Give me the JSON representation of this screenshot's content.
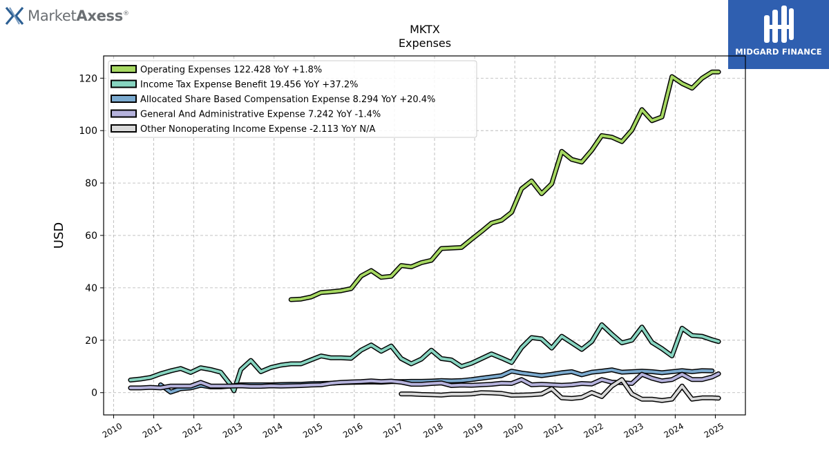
{
  "brand": {
    "logo_regular": "Market",
    "logo_bold": "Axess",
    "logo_mark": "®",
    "badge_text": "MIDGARD FINANCE"
  },
  "chart_data": {
    "type": "line",
    "title": "MKTX",
    "subtitle": "Expenses",
    "xlabel": "",
    "ylabel": "USD",
    "xlim": [
      2009.75,
      2025.75
    ],
    "ylim": [
      -8.5,
      128.5
    ],
    "x_ticks": [
      2010,
      2011,
      2012,
      2013,
      2014,
      2015,
      2016,
      2017,
      2018,
      2019,
      2020,
      2021,
      2022,
      2023,
      2024,
      2025
    ],
    "y_ticks": [
      0,
      20,
      40,
      60,
      80,
      100,
      120
    ],
    "grid": true,
    "legend_position": "top-left",
    "series": [
      {
        "name": "Operating Expenses",
        "legend": "Operating Expenses  122.428 YoY +1.8%",
        "color": "#a6d862",
        "x": [
          2014.42,
          2014.67,
          2014.92,
          2015.17,
          2015.42,
          2015.67,
          2015.92,
          2016.17,
          2016.42,
          2016.67,
          2016.92,
          2017.17,
          2017.42,
          2017.67,
          2017.92,
          2018.17,
          2018.42,
          2018.67,
          2018.92,
          2019.17,
          2019.42,
          2019.67,
          2019.92,
          2020.17,
          2020.42,
          2020.67,
          2020.92,
          2021.17,
          2021.42,
          2021.67,
          2021.92,
          2022.17,
          2022.42,
          2022.67,
          2022.92,
          2023.17,
          2023.42,
          2023.67,
          2023.92,
          2024.17,
          2024.42,
          2024.67,
          2024.92,
          2025.08
        ],
        "y": [
          35.5,
          35.7,
          36.5,
          38.2,
          38.5,
          38.9,
          39.7,
          44.5,
          46.6,
          44.0,
          44.4,
          48.5,
          48.0,
          49.6,
          50.5,
          55.0,
          55.2,
          55.4,
          58.5,
          61.5,
          64.7,
          65.8,
          68.8,
          77.8,
          80.8,
          75.9,
          79.7,
          92.1,
          89.0,
          88.0,
          92.5,
          98.1,
          97.5,
          95.8,
          100.2,
          108.0,
          103.8,
          105.2,
          120.6,
          118.0,
          116.2,
          120.0,
          122.4,
          122.4
        ]
      },
      {
        "name": "Income Tax Expense Benefit",
        "legend": "Income Tax Expense Benefit  19.456 YoY +37.2%",
        "color": "#87d4c0",
        "x": [
          2010.42,
          2010.67,
          2010.92,
          2011.17,
          2011.42,
          2011.67,
          2011.92,
          2012.17,
          2012.42,
          2012.67,
          2012.92,
          2013.0,
          2013.17,
          2013.42,
          2013.67,
          2013.92,
          2014.17,
          2014.42,
          2014.67,
          2014.92,
          2015.17,
          2015.42,
          2015.67,
          2015.92,
          2016.17,
          2016.42,
          2016.67,
          2016.92,
          2017.17,
          2017.42,
          2017.67,
          2017.92,
          2018.17,
          2018.42,
          2018.67,
          2018.92,
          2019.17,
          2019.42,
          2019.67,
          2019.92,
          2020.17,
          2020.42,
          2020.67,
          2020.92,
          2021.17,
          2021.42,
          2021.67,
          2021.92,
          2022.17,
          2022.42,
          2022.67,
          2022.92,
          2023.17,
          2023.42,
          2023.67,
          2023.92,
          2024.17,
          2024.42,
          2024.67,
          2024.92,
          2025.08
        ],
        "y": [
          4.8,
          5.2,
          5.8,
          7.2,
          8.3,
          9.2,
          7.7,
          9.5,
          8.8,
          7.8,
          2.9,
          0.7,
          8.8,
          12.3,
          8.0,
          9.6,
          10.5,
          11.0,
          11.0,
          12.5,
          14.0,
          13.3,
          13.3,
          13.1,
          16.2,
          18.2,
          15.8,
          17.8,
          13.0,
          11.0,
          12.8,
          16.2,
          13.0,
          12.5,
          10.0,
          11.2,
          13.0,
          14.8,
          13.2,
          11.5,
          17.2,
          21.0,
          20.5,
          17.0,
          21.5,
          19.0,
          16.5,
          19.5,
          25.9,
          22.3,
          19.0,
          20.0,
          25.0,
          19.2,
          16.8,
          14.0,
          24.6,
          21.8,
          21.5,
          20.2,
          19.5
        ]
      },
      {
        "name": "Allocated Share Based Compensation Expense",
        "legend": "Allocated Share Based Compensation Expense  8.294 YoY +20.4%",
        "color": "#7baacf",
        "x": [
          2011.17,
          2011.42,
          2011.67,
          2011.92,
          2012.17,
          2012.42,
          2012.67,
          2012.92,
          2013.17,
          2013.42,
          2013.67,
          2013.92,
          2014.17,
          2014.42,
          2014.67,
          2014.92,
          2015.17,
          2015.42,
          2015.67,
          2015.92,
          2016.17,
          2016.42,
          2016.67,
          2016.92,
          2017.17,
          2017.42,
          2017.67,
          2017.92,
          2018.17,
          2018.42,
          2018.67,
          2018.92,
          2019.17,
          2019.42,
          2019.67,
          2019.92,
          2020.17,
          2020.42,
          2020.67,
          2020.92,
          2021.17,
          2021.42,
          2021.67,
          2021.92,
          2022.17,
          2022.42,
          2022.67,
          2022.92,
          2023.17,
          2023.42,
          2023.67,
          2023.92,
          2024.17,
          2024.42,
          2024.67,
          2024.92
        ],
        "y": [
          3.0,
          0.2,
          1.5,
          1.8,
          2.8,
          2.2,
          2.2,
          2.5,
          3.0,
          3.0,
          3.0,
          3.0,
          3.1,
          3.2,
          3.2,
          3.4,
          3.5,
          3.6,
          3.8,
          3.9,
          4.0,
          4.1,
          4.0,
          4.2,
          4.2,
          4.3,
          4.3,
          4.4,
          4.6,
          4.5,
          4.6,
          5.0,
          5.5,
          6.0,
          6.5,
          8.2,
          7.5,
          7.0,
          6.5,
          7.0,
          7.6,
          8.0,
          6.8,
          7.8,
          8.2,
          8.7,
          7.8,
          8.0,
          8.2,
          8.0,
          7.6,
          8.0,
          8.4,
          8.0,
          8.4,
          8.3
        ]
      },
      {
        "name": "General And Administrative Expense",
        "legend": "General And Administrative Expense  7.242 YoY -1.4%",
        "color": "#b5b2dc",
        "x": [
          2010.42,
          2010.67,
          2010.92,
          2011.17,
          2011.42,
          2011.67,
          2011.92,
          2012.17,
          2012.42,
          2012.67,
          2012.92,
          2013.17,
          2013.42,
          2013.67,
          2013.92,
          2014.17,
          2014.42,
          2014.67,
          2014.92,
          2015.17,
          2015.42,
          2015.67,
          2015.92,
          2016.17,
          2016.42,
          2016.67,
          2016.92,
          2017.17,
          2017.42,
          2017.67,
          2017.92,
          2018.17,
          2018.42,
          2018.67,
          2018.92,
          2019.17,
          2019.42,
          2019.67,
          2019.92,
          2020.17,
          2020.42,
          2020.67,
          2020.92,
          2021.17,
          2021.42,
          2021.67,
          2021.92,
          2022.17,
          2022.42,
          2022.67,
          2022.92,
          2023.17,
          2023.42,
          2023.67,
          2023.92,
          2024.17,
          2024.42,
          2024.67,
          2024.92,
          2025.08
        ],
        "y": [
          1.8,
          1.8,
          2.0,
          1.8,
          2.5,
          2.5,
          2.5,
          3.9,
          2.5,
          2.5,
          2.5,
          2.6,
          2.4,
          2.4,
          2.6,
          2.5,
          2.6,
          2.7,
          2.9,
          3.0,
          3.6,
          3.9,
          4.1,
          4.2,
          4.5,
          4.2,
          4.4,
          4.0,
          3.2,
          3.2,
          3.5,
          3.7,
          2.7,
          2.9,
          2.8,
          3.0,
          3.2,
          3.6,
          3.5,
          5.0,
          3.0,
          3.2,
          3.0,
          2.8,
          3.0,
          3.5,
          3.3,
          5.0,
          4.0,
          3.8,
          3.5,
          7.0,
          5.5,
          4.5,
          5.0,
          7.0,
          5.0,
          5.0,
          6.0,
          7.2
        ]
      },
      {
        "name": "Other Nonoperating Income Expense",
        "legend": "Other Nonoperating Income Expense  -2.113 YoY N/A",
        "color": "#d9d9d9",
        "x": [
          2017.17,
          2017.42,
          2017.67,
          2017.92,
          2018.17,
          2018.42,
          2018.67,
          2018.92,
          2019.17,
          2019.42,
          2019.67,
          2019.92,
          2020.17,
          2020.42,
          2020.67,
          2020.92,
          2021.17,
          2021.42,
          2021.67,
          2021.92,
          2022.17,
          2022.42,
          2022.67,
          2022.92,
          2023.17,
          2023.42,
          2023.67,
          2023.92,
          2024.17,
          2024.42,
          2024.67,
          2024.92,
          2025.08
        ],
        "y": [
          -0.5,
          -0.5,
          -0.7,
          -0.8,
          -0.9,
          -0.6,
          -0.6,
          -0.5,
          0.0,
          -0.1,
          -0.3,
          -1.0,
          -0.9,
          -0.8,
          -0.5,
          1.5,
          -2.0,
          -2.2,
          -1.8,
          0.0,
          -1.5,
          2.5,
          5.0,
          -0.5,
          -2.5,
          -2.5,
          -3.0,
          -2.5,
          2.5,
          -2.5,
          -2.0,
          -2.0,
          -2.1
        ]
      }
    ]
  }
}
